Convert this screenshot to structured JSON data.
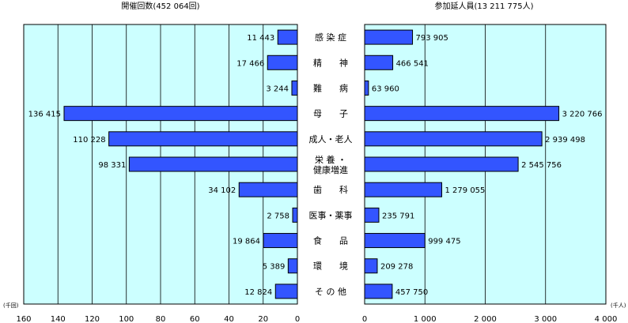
{
  "chart_data": [
    {
      "type": "bar",
      "orientation": "horizontal",
      "direction": "right-to-left",
      "title": "開催回数(452 064回)",
      "unit": "(千回)",
      "xlim": [
        0,
        160
      ],
      "ticks": [
        160,
        140,
        120,
        100,
        80,
        60,
        40,
        20,
        0
      ],
      "tick_labels": [
        "160",
        "140",
        "120",
        "100",
        "80",
        "60",
        "40",
        "20",
        "0"
      ],
      "categories": [
        "感染症",
        "精神",
        "難病",
        "母子",
        "成人・老人",
        "栄養・健康増進",
        "歯科",
        "医事・薬事",
        "食品",
        "環境",
        "その他"
      ],
      "values": [
        11.443,
        17.466,
        3.244,
        136.415,
        110.228,
        98.331,
        34.102,
        2.758,
        19.864,
        5.389,
        12.824
      ],
      "value_labels": [
        "11 443",
        "17 466",
        "3 244",
        "136 415",
        "110 228",
        "98 331",
        "34 102",
        "2 758",
        "19 864",
        "5 389",
        "12 824"
      ],
      "grid": true,
      "bar_color": "#3355ff",
      "background": "#ccffff"
    },
    {
      "type": "bar",
      "orientation": "horizontal",
      "direction": "left-to-right",
      "title": "参加延人員(13 211 775人)",
      "unit": "(千人)",
      "xlim": [
        0,
        4000
      ],
      "ticks": [
        0,
        1000,
        2000,
        3000,
        4000
      ],
      "tick_labels": [
        "0",
        "1 000",
        "2 000",
        "3 000",
        "4 000"
      ],
      "categories": [
        "感染症",
        "精神",
        "難病",
        "母子",
        "成人・老人",
        "栄養・健康増進",
        "歯科",
        "医事・薬事",
        "食品",
        "環境",
        "その他"
      ],
      "values": [
        793.905,
        466.541,
        63.96,
        3220.766,
        2939.498,
        2545.756,
        1279.055,
        235.791,
        999.475,
        209.278,
        457.75
      ],
      "value_labels": [
        "793 905",
        "466 541",
        "63 960",
        "3 220 766",
        "2 939 498",
        "2 545 756",
        "1 279 055",
        "235 791",
        "999 475",
        "209 278",
        "457 750"
      ],
      "grid": true,
      "bar_color": "#3355ff",
      "background": "#ccffff"
    }
  ],
  "category_labels": [
    [
      "感 染 症"
    ],
    [
      "精　　神"
    ],
    [
      "難　　病"
    ],
    [
      "母　　子"
    ],
    [
      "成人・老人"
    ],
    [
      "栄 養 ・",
      "健康増進"
    ],
    [
      "歯　　科"
    ],
    [
      "医事・薬事"
    ],
    [
      "食　　品"
    ],
    [
      "環　　境"
    ],
    [
      "そ の 他"
    ]
  ]
}
